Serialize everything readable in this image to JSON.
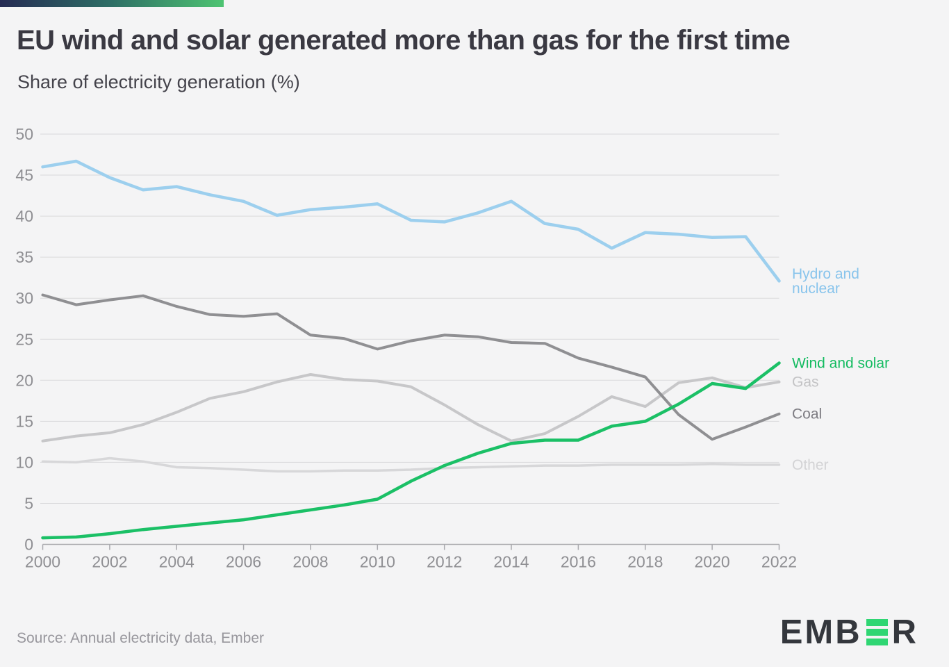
{
  "header": {
    "title": "EU wind and solar generated more than gas for the first time",
    "subtitle": "Share of electricity generation (%)"
  },
  "footer": {
    "source": "Source: Annual electricity data, Ember",
    "logo": {
      "name": "EMBER",
      "parts": [
        "EMB",
        "R"
      ]
    }
  },
  "colors": {
    "page_bg": "#f4f4f5",
    "accent_gradient": [
      "#252b53",
      "#2e6f66",
      "#4ec472"
    ],
    "title_text": "#3a3942",
    "subtitle_text": "#44434b",
    "axis_text": "#8f8f93",
    "gridline": "#d9d9db",
    "axis_line": "#a9a9ad",
    "source_text": "#98979d",
    "logo_dark": "#34373d",
    "logo_green": "#2fd673"
  },
  "chart_data": {
    "type": "line",
    "title": "EU wind and solar generated more than gas for the first time",
    "subtitle": "Share of electricity generation (%)",
    "xlabel": "",
    "ylabel": "Share of electricity generation (%)",
    "xlim": [
      2000,
      2022
    ],
    "ylim": [
      0,
      50
    ],
    "grid": "horizontal",
    "legend_position": "right-of-line-ends",
    "x": [
      2000,
      2001,
      2002,
      2003,
      2004,
      2005,
      2006,
      2007,
      2008,
      2009,
      2010,
      2011,
      2012,
      2013,
      2014,
      2015,
      2016,
      2017,
      2018,
      2019,
      2020,
      2021,
      2022
    ],
    "x_ticks": [
      2000,
      2002,
      2004,
      2006,
      2008,
      2010,
      2012,
      2014,
      2016,
      2018,
      2020,
      2022
    ],
    "y_ticks": [
      0,
      5,
      10,
      15,
      20,
      25,
      30,
      35,
      40,
      45,
      50
    ],
    "series": [
      {
        "name": "Hydro and nuclear",
        "label_lines": [
          "Hydro and",
          "nuclear"
        ],
        "color": "#9ccfee",
        "label_color": "#88c4ec",
        "width": 4.5,
        "z": 4,
        "values": [
          46.0,
          46.7,
          44.7,
          43.2,
          43.6,
          42.6,
          41.8,
          40.1,
          40.8,
          41.1,
          41.5,
          39.5,
          39.3,
          40.4,
          41.8,
          39.1,
          38.4,
          36.1,
          38.0,
          37.8,
          37.4,
          37.5,
          32.1
        ]
      },
      {
        "name": "Wind and solar",
        "label_lines": [
          "Wind and solar"
        ],
        "color": "#1bc066",
        "label_color": "#13bb60",
        "width": 4.5,
        "z": 5,
        "values": [
          0.8,
          0.9,
          1.3,
          1.8,
          2.2,
          2.6,
          3.0,
          3.6,
          4.2,
          4.8,
          5.5,
          7.7,
          9.6,
          11.1,
          12.3,
          12.7,
          12.7,
          14.4,
          15.0,
          17.1,
          19.6,
          19.0,
          22.1
        ]
      },
      {
        "name": "Gas",
        "label_lines": [
          "Gas"
        ],
        "color": "#c7c7c9",
        "label_color": "#c3c3c5",
        "width": 4,
        "z": 2,
        "values": [
          12.6,
          13.2,
          13.6,
          14.6,
          16.1,
          17.8,
          18.6,
          19.8,
          20.7,
          20.1,
          19.9,
          19.2,
          17.0,
          14.6,
          12.6,
          13.5,
          15.6,
          18.0,
          16.8,
          19.7,
          20.3,
          19.1,
          19.8
        ]
      },
      {
        "name": "Coal",
        "label_lines": [
          "Coal"
        ],
        "color": "#8f8f92",
        "label_color": "#7c7b81",
        "width": 4,
        "z": 3,
        "values": [
          30.4,
          29.2,
          29.8,
          30.3,
          29.0,
          28.0,
          27.8,
          28.1,
          25.5,
          25.1,
          23.8,
          24.8,
          25.5,
          25.3,
          24.6,
          24.5,
          22.7,
          21.6,
          20.4,
          15.8,
          12.8,
          14.3,
          15.9
        ]
      },
      {
        "name": "Other",
        "label_lines": [
          "Other"
        ],
        "color": "#d7d7d9",
        "label_color": "#d3d3d5",
        "width": 3.5,
        "z": 1,
        "values": [
          10.1,
          10.0,
          10.5,
          10.1,
          9.4,
          9.3,
          9.1,
          8.9,
          8.9,
          9.0,
          9.0,
          9.1,
          9.3,
          9.4,
          9.5,
          9.6,
          9.6,
          9.7,
          9.7,
          9.7,
          9.8,
          9.7,
          9.7
        ]
      }
    ]
  }
}
